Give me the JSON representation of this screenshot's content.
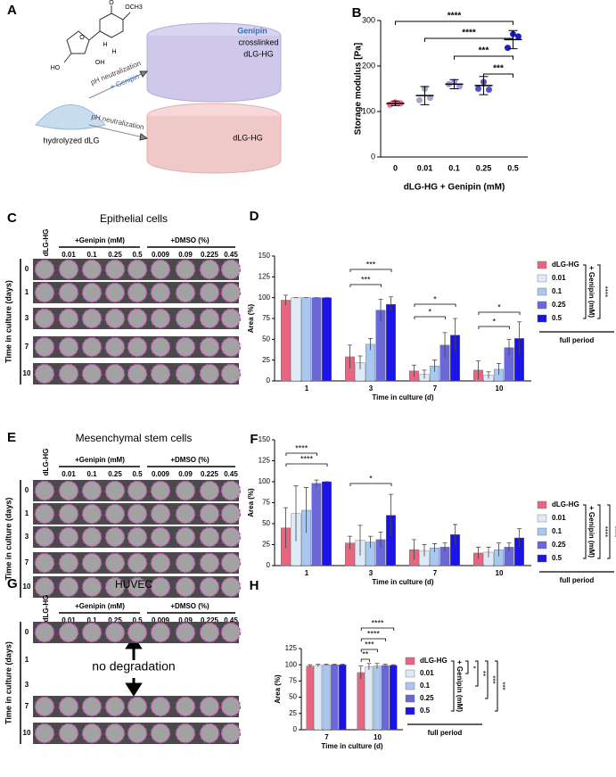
{
  "panels": {
    "A": {
      "letter": "A",
      "atoms": [
        "OCH3",
        "O",
        "O",
        "H",
        "OH",
        "HO",
        "H"
      ],
      "genipin": "Genipin",
      "crosslinked": "crosslinked",
      "product1": "dLG-HG",
      "arrow1": "pH neutralization",
      "reagent": "+ Genipin",
      "source": "hydrolyzed dLG",
      "arrow2": "pH neutralization",
      "product2": "dLG-HG"
    },
    "C": {
      "letter": "C",
      "title": "Epithelial cells",
      "first_column": "dLG-HG",
      "genipin": "+Genipin (mM)",
      "dmso": "+DMSO (%)",
      "columns": [
        "0.01",
        "0.1",
        "0.25",
        "0.5",
        "0.009",
        "0.09",
        "0.225",
        "0.45"
      ],
      "rows": [
        0,
        1,
        3,
        7,
        10
      ],
      "axis": "Time in culture (days)"
    },
    "E": {
      "letter": "E",
      "title": "Mesenchymal stem cells",
      "first_column": "dLG-HG",
      "genipin": "+Genipin (mM)",
      "dmso": "+DMSO (%)",
      "columns": [
        "0.01",
        "0.1",
        "0.25",
        "0.5",
        "0.009",
        "0.09",
        "0.225",
        "0.45"
      ],
      "rows": [
        0,
        1,
        3,
        7,
        10
      ],
      "axis": "Time in culture (days)"
    },
    "G": {
      "letter": "G",
      "title": "HUVEC",
      "first_column": "dLG-HG",
      "genipin": "+Genipin (mM)",
      "dmso": "+DMSO (%)",
      "columns": [
        "0.01",
        "0.1",
        "0.25",
        "0.5",
        "0.009",
        "0.09",
        "0.225",
        "0.45"
      ],
      "rows": [
        0,
        1,
        3,
        7,
        10
      ],
      "axis": "Time in culture (days)",
      "note": "no degradation"
    }
  },
  "chart_data": [
    {
      "type": "scatter",
      "label": "B",
      "ylabel": "Storage modulus [Pa]",
      "xlabel": "dLG-HG + Genipin (mM)",
      "categories": [
        "0",
        "0.01",
        "0.1",
        "0.25",
        "0.5"
      ],
      "colors": [
        "#f07090",
        "#a0a8c8",
        "#a99ae8",
        "#5050d0",
        "#2020c0"
      ],
      "points": [
        [
          115,
          120,
          118
        ],
        [
          125,
          150,
          130
        ],
        [
          160,
          165,
          155
        ],
        [
          150,
          165,
          148
        ],
        [
          240,
          270,
          265
        ]
      ],
      "means": [
        118,
        135,
        160,
        157,
        258
      ],
      "errors": [
        5,
        20,
        10,
        20,
        20
      ],
      "ylim": [
        0,
        300
      ],
      "yticks": [
        0,
        100,
        200,
        300
      ],
      "significance": [
        "****",
        "****",
        "***",
        "***"
      ]
    },
    {
      "type": "bar",
      "label": "D",
      "ylabel": "Area (%)",
      "xlabel": "Time in culture (d)",
      "categories": [
        "1",
        "3",
        "7",
        "10"
      ],
      "series": [
        {
          "name": "dLG-HG",
          "color": "#e8657f",
          "values": [
            97,
            29,
            12,
            13
          ],
          "errors": [
            6,
            14,
            7,
            11
          ]
        },
        {
          "name": "0.01",
          "color": "#deeaf8",
          "values": [
            100,
            22,
            8,
            7
          ],
          "errors": [
            0,
            8,
            5,
            4
          ]
        },
        {
          "name": "0.1",
          "color": "#a9c8ef",
          "values": [
            100,
            44,
            18,
            14
          ],
          "errors": [
            0,
            7,
            7,
            7
          ]
        },
        {
          "name": "0.25",
          "color": "#6a68d8",
          "values": [
            100,
            85,
            43,
            40
          ],
          "errors": [
            0,
            13,
            15,
            10
          ]
        },
        {
          "name": "0.5",
          "color": "#1a14e6",
          "values": [
            100,
            92,
            55,
            51
          ],
          "errors": [
            0,
            9,
            20,
            20
          ]
        }
      ],
      "ylim": [
        0,
        150
      ],
      "yticks": [
        0,
        25,
        50,
        75,
        100,
        125,
        150
      ],
      "significance": [
        "***",
        "***",
        "*",
        "*",
        "*",
        "*"
      ],
      "legend_group": "+ Genipin (mM)",
      "legend_stats": [
        "****"
      ],
      "period": "full period"
    },
    {
      "type": "bar",
      "label": "F",
      "ylabel": "Area (%)",
      "xlabel": "Time in culture (d)",
      "categories": [
        "1",
        "3",
        "7",
        "10"
      ],
      "series": [
        {
          "name": "dLG-HG",
          "color": "#e8657f",
          "values": [
            45,
            27,
            19,
            15
          ],
          "errors": [
            24,
            8,
            12,
            7
          ]
        },
        {
          "name": "0.01",
          "color": "#deeaf8",
          "values": [
            62,
            30,
            18,
            16
          ],
          "errors": [
            33,
            18,
            7,
            6
          ]
        },
        {
          "name": "0.1",
          "color": "#a9c8ef",
          "values": [
            66,
            28,
            21,
            19
          ],
          "errors": [
            27,
            7,
            5,
            8
          ]
        },
        {
          "name": "0.25",
          "color": "#6a68d8",
          "values": [
            98,
            31,
            22,
            22
          ],
          "errors": [
            4,
            9,
            5,
            5
          ]
        },
        {
          "name": "0.5",
          "color": "#1a14e6",
          "values": [
            100,
            60,
            37,
            33
          ],
          "errors": [
            0,
            25,
            12,
            11
          ]
        }
      ],
      "ylim": [
        0,
        150
      ],
      "yticks": [
        0,
        25,
        50,
        75,
        100,
        125,
        150
      ],
      "significance": [
        "****",
        "****",
        "*"
      ],
      "legend_group": "+ Genipin (mM)",
      "legend_stats": [
        "****",
        "****"
      ],
      "period": "full period"
    },
    {
      "type": "bar",
      "label": "H",
      "ylabel": "Area (%)",
      "xlabel": "Time in culture (d)",
      "categories": [
        "7",
        "10"
      ],
      "series": [
        {
          "name": "dLG-HG",
          "color": "#e8657f",
          "values": [
            98,
            88
          ],
          "errors": [
            2,
            10
          ]
        },
        {
          "name": "0.01",
          "color": "#deeaf8",
          "values": [
            99,
            97
          ],
          "errors": [
            2,
            5
          ]
        },
        {
          "name": "0.1",
          "color": "#a9c8ef",
          "values": [
            100,
            98
          ],
          "errors": [
            1,
            4
          ]
        },
        {
          "name": "0.25",
          "color": "#6a68d8",
          "values": [
            100,
            99
          ],
          "errors": [
            1,
            2
          ]
        },
        {
          "name": "0.5",
          "color": "#1a14e6",
          "values": [
            100,
            99
          ],
          "errors": [
            1,
            1
          ]
        }
      ],
      "ylim": [
        0,
        125
      ],
      "yticks": [
        0,
        25,
        50,
        75,
        100,
        125
      ],
      "significance": [
        "****",
        "****",
        "***",
        "**"
      ],
      "legend_group": "+ Genipin (mM)",
      "legend_stats": [
        "*",
        "**",
        "***",
        "***"
      ],
      "period": "full period"
    }
  ]
}
